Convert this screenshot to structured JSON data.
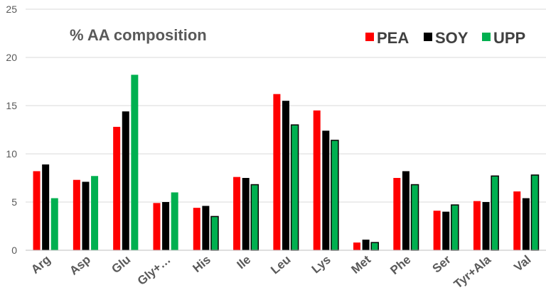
{
  "chart_data": {
    "type": "bar",
    "title": "% AA composition",
    "xlabel": "",
    "ylabel": "",
    "ylim": [
      0,
      25
    ],
    "yticks": [
      0,
      5,
      10,
      15,
      20,
      25
    ],
    "grid": true,
    "legend_position": "top-right",
    "categories": [
      "Arg",
      "Asp",
      "Glu",
      "Gly+…",
      "His",
      "Ile",
      "Leu",
      "Lys",
      "Met",
      "Phe",
      "Ser",
      "Tyr+Ala",
      "Val"
    ],
    "series": [
      {
        "name": "PEA",
        "color": "#ff0000",
        "values": [
          8.2,
          7.3,
          12.8,
          4.9,
          4.4,
          7.6,
          16.2,
          14.5,
          0.8,
          7.5,
          4.1,
          5.1,
          6.1
        ]
      },
      {
        "name": "SOY",
        "color": "#000000",
        "values": [
          8.9,
          7.1,
          14.4,
          5.0,
          4.6,
          7.5,
          15.5,
          12.4,
          1.1,
          8.2,
          4.0,
          5.0,
          5.4
        ]
      },
      {
        "name": "UPP",
        "color": "#00b050",
        "values": [
          5.4,
          7.7,
          18.2,
          6.0,
          3.5,
          6.8,
          13.0,
          11.4,
          0.8,
          6.8,
          4.7,
          7.7,
          7.8
        ]
      }
    ]
  }
}
